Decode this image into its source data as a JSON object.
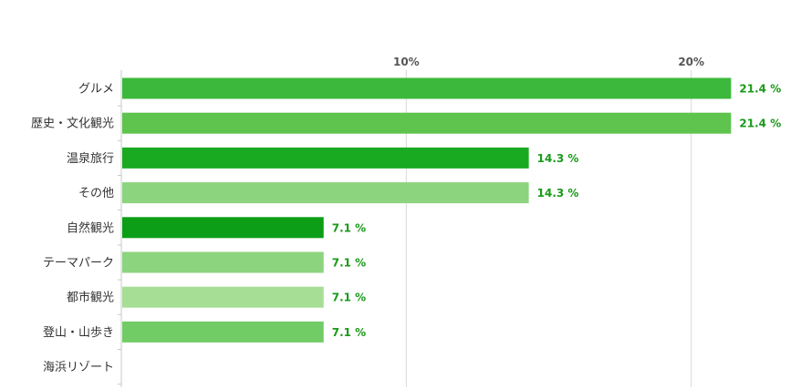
{
  "chart_data": {
    "type": "bar",
    "orientation": "horizontal",
    "categories": [
      "グルメ",
      "歴史・文化観光",
      "温泉旅行",
      "その他",
      "自然観光",
      "テーマパーク",
      "都市観光",
      "登山・山歩き",
      "海浜リゾート"
    ],
    "values": [
      21.4,
      21.4,
      14.3,
      14.3,
      7.1,
      7.1,
      7.1,
      7.1,
      0
    ],
    "data_labels": [
      "21.4 %",
      "21.4 %",
      "14.3 %",
      "14.3 %",
      "7.1 %",
      "7.1 %",
      "7.1 %",
      "7.1 %",
      ""
    ],
    "bar_colors": [
      "#3cb83c",
      "#5ec44e",
      "#1aaa22",
      "#8cd47e",
      "#0c9e16",
      "#8cd47e",
      "#a6de96",
      "#72cc66",
      "#72cc66"
    ],
    "xlim": [
      0,
      23.5
    ],
    "xticks": [
      10,
      20
    ],
    "xtick_labels": [
      "10%",
      "20%"
    ],
    "grid": true,
    "label_color": "#1a9a1a",
    "title": "",
    "xlabel": "",
    "ylabel": ""
  }
}
